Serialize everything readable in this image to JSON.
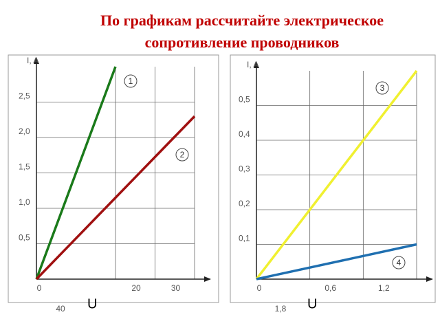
{
  "title": "По графикам рассчитайте электрическое сопротивление проводников",
  "chart_data": [
    {
      "type": "line",
      "y_label": "I,  A",
      "x_label": "U",
      "xlim": [
        0,
        40
      ],
      "ylim": [
        0,
        3
      ],
      "xticks": [
        0,
        20,
        30,
        40
      ],
      "yticks": [
        {
          "value": 0.5,
          "label": "0,5"
        },
        {
          "value": 1.0,
          "label": "1,0"
        },
        {
          "value": 1.5,
          "label": "1,5"
        },
        {
          "value": 2.0,
          "label": "2,0"
        },
        {
          "value": 2.5,
          "label": "2,5"
        }
      ],
      "grid": true,
      "series": [
        {
          "name": "1",
          "color": "#1a7a1a",
          "x": [
            0,
            20
          ],
          "values": [
            0,
            3
          ]
        },
        {
          "name": "2",
          "color": "#a01010",
          "x": [
            0,
            40
          ],
          "values": [
            0,
            2.3
          ]
        }
      ]
    },
    {
      "type": "line",
      "y_label": "I,  A",
      "x_label": "U",
      "xlim": [
        0,
        1.8
      ],
      "ylim": [
        0,
        0.6
      ],
      "xticks": [
        0,
        {
          "value": 0.6,
          "label": "0,6"
        },
        {
          "value": 1.2,
          "label": "1,2"
        },
        {
          "value": 1.8,
          "label": "1,8"
        }
      ],
      "yticks": [
        {
          "value": 0.1,
          "label": "0,1"
        },
        {
          "value": 0.2,
          "label": "0,2"
        },
        {
          "value": 0.3,
          "label": "0,3"
        },
        {
          "value": 0.4,
          "label": "0,4"
        },
        {
          "value": 0.5,
          "label": "0,5"
        }
      ],
      "grid": true,
      "series": [
        {
          "name": "3",
          "color": "#f0f030",
          "x": [
            0,
            1.8
          ],
          "values": [
            0,
            0.6
          ]
        },
        {
          "name": "4",
          "color": "#1f6fb0",
          "x": [
            0,
            1.8
          ],
          "values": [
            0,
            0.1
          ]
        }
      ]
    }
  ]
}
